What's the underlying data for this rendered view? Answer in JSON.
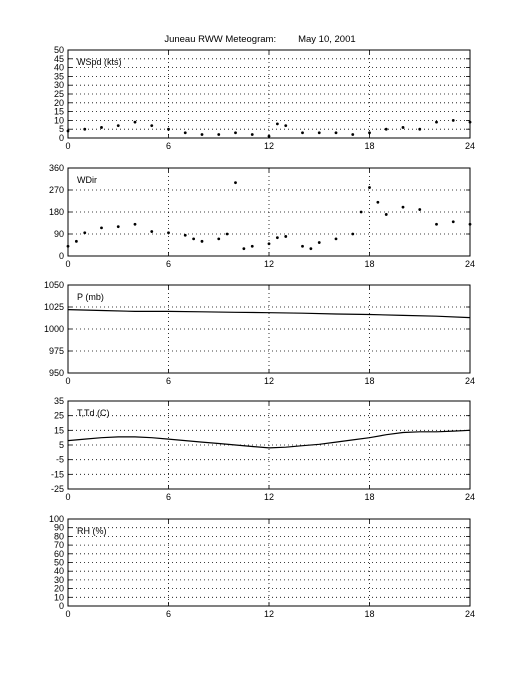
{
  "title": {
    "station": "Juneau RWW Meteogram:",
    "date": "May 10, 2001"
  },
  "chart_data": [
    {
      "type": "scatter",
      "label": "WSpd (kts)",
      "xlim": [
        0,
        24
      ],
      "xticks": [
        "0",
        "6",
        "12",
        "18",
        "24"
      ],
      "ylim": [
        0,
        50
      ],
      "yticks": [
        "0",
        "5",
        "10",
        "15",
        "20",
        "25",
        "30",
        "35",
        "40",
        "45",
        "50"
      ],
      "grid": true,
      "series": [
        {
          "x": [
            0,
            1,
            2,
            3,
            4,
            5,
            6,
            7,
            8,
            9,
            10,
            11,
            12,
            12.5,
            13,
            14,
            15,
            16,
            17,
            18,
            19,
            20,
            21,
            22,
            23,
            24
          ],
          "y": [
            4,
            5,
            6,
            7,
            9,
            7,
            5,
            3,
            2,
            2,
            3,
            2,
            1,
            8,
            7,
            3,
            3,
            3,
            2,
            3,
            5,
            6,
            5,
            9,
            10,
            9
          ]
        }
      ]
    },
    {
      "type": "scatter",
      "label": "WDir",
      "xlim": [
        0,
        24
      ],
      "xticks": [
        "0",
        "6",
        "12",
        "18",
        "24"
      ],
      "ylim": [
        0,
        360
      ],
      "yticks": [
        "0",
        "90",
        "180",
        "270",
        "360"
      ],
      "grid": true,
      "series": [
        {
          "x": [
            0,
            0.5,
            1,
            2,
            3,
            4,
            5,
            6,
            7,
            7.5,
            8,
            9,
            9.5,
            10,
            10.5,
            11,
            12,
            12.5,
            13,
            14,
            14.5,
            15,
            16,
            17,
            17.5,
            18,
            18.5,
            19,
            20,
            21,
            22,
            23,
            24
          ],
          "y": [
            40,
            60,
            95,
            115,
            120,
            130,
            100,
            95,
            85,
            70,
            60,
            70,
            90,
            300,
            30,
            40,
            50,
            75,
            80,
            40,
            30,
            55,
            70,
            90,
            180,
            280,
            220,
            170,
            200,
            190,
            130,
            140,
            130
          ]
        }
      ]
    },
    {
      "type": "line",
      "label": "P (mb)",
      "xlim": [
        0,
        24
      ],
      "xticks": [
        "0",
        "6",
        "12",
        "18",
        "24"
      ],
      "ylim": [
        950,
        1050
      ],
      "yticks": [
        "950",
        "975",
        "1000",
        "1025",
        "1050"
      ],
      "grid": true,
      "series": [
        {
          "x": [
            0,
            2,
            4,
            6,
            8,
            10,
            12,
            14,
            16,
            18,
            20,
            22,
            24
          ],
          "y": [
            1022,
            1021,
            1020,
            1020,
            1019.5,
            1019,
            1018.5,
            1018,
            1017,
            1016.5,
            1015.5,
            1014.5,
            1013
          ]
        }
      ]
    },
    {
      "type": "line",
      "label": "T,Td (C)",
      "xlim": [
        0,
        24
      ],
      "xticks": [
        "0",
        "6",
        "12",
        "18",
        "24"
      ],
      "ylim": [
        -25,
        35
      ],
      "yticks": [
        "-25",
        "-15",
        "-5",
        "5",
        "15",
        "25",
        "35"
      ],
      "grid": true,
      "series": [
        {
          "x": [
            0,
            1,
            2,
            3,
            4,
            5,
            6,
            7,
            8,
            9,
            10,
            11,
            12,
            13,
            14,
            15,
            16,
            17,
            18,
            19,
            20,
            21,
            22,
            23,
            24
          ],
          "y": [
            8,
            9,
            10,
            10.5,
            10.5,
            10,
            9,
            8,
            7,
            6,
            5,
            4,
            3,
            3.5,
            4.5,
            5.5,
            7,
            8.5,
            10,
            12,
            13.5,
            14,
            14,
            14.5,
            15
          ]
        }
      ]
    },
    {
      "type": "line",
      "label": "RH (%)",
      "xlim": [
        0,
        24
      ],
      "xticks": [
        "0",
        "6",
        "12",
        "18",
        "24"
      ],
      "ylim": [
        0,
        100
      ],
      "yticks": [
        "0",
        "10",
        "20",
        "30",
        "40",
        "50",
        "60",
        "70",
        "80",
        "90",
        "100"
      ],
      "grid": true,
      "series": []
    }
  ]
}
